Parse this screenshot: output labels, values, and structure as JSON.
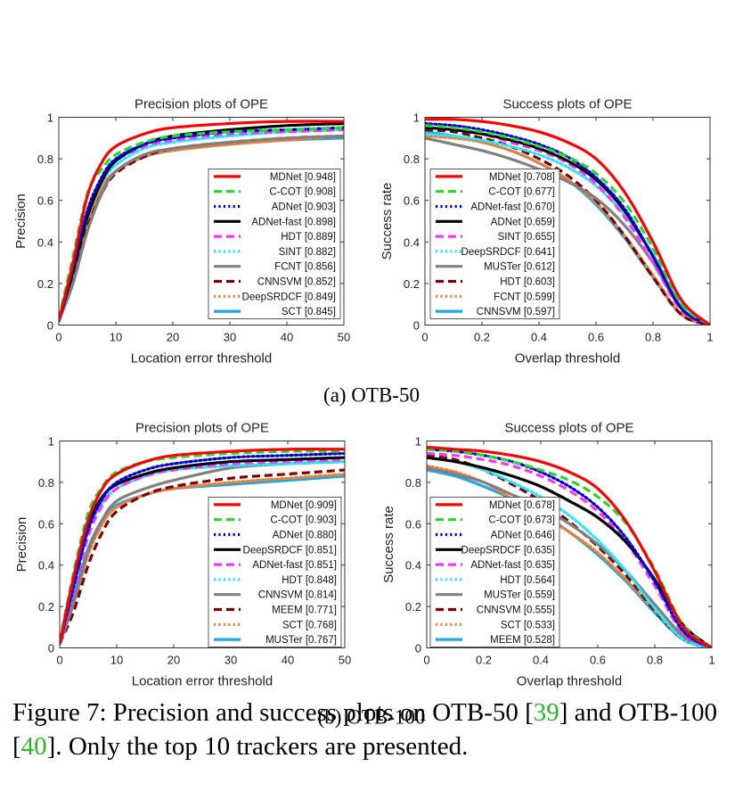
{
  "caption": {
    "lead": "Figure 7: Precision and success plots on OTB-50 [",
    "ref1": "39",
    "mid": "] and OTB-100 [",
    "ref2": "40",
    "tail": "]. Only the top 10 trackers are presented.",
    "ref_color": "#22bb22"
  },
  "subcaptions": [
    "(a) OTB-50",
    "(b) OTB-100"
  ],
  "tracker_styles": {
    "MDNet": {
      "color": "#ff0000",
      "dash": "solid"
    },
    "C-COT": {
      "color": "#22dd22",
      "dash": "dash"
    },
    "ADNet": {
      "color": "#0000dd",
      "dash": "dot"
    },
    "ADNet-fast": {
      "color": "#000000",
      "dash": "solid"
    },
    "DeepSRDCF": {
      "color": "#000000",
      "dash": "solid"
    },
    "HDT": {
      "color": "#ff33ff",
      "dash": "dash"
    },
    "SINT": {
      "color": "#22e8ff",
      "dash": "dot"
    },
    "FCNT": {
      "color": "#808080",
      "dash": "solid"
    },
    "CNNSVM": {
      "color": "#800000",
      "dash": "dash"
    },
    "DeepSRDCF_b": {
      "color": "#f08030",
      "dash": "dot"
    },
    "SCT": {
      "color": "#1fa8e8",
      "dash": "solid"
    },
    "MUSTer": {
      "color": "#808080",
      "dash": "solid"
    },
    "MEEM": {
      "color": "#800000",
      "dash": "dash"
    }
  },
  "chart_data": [
    {
      "type": "line",
      "title": "Precision plots of OPE",
      "xlabel": "Location error threshold",
      "ylabel": "Precision",
      "xlim": [
        0,
        50
      ],
      "ylim": [
        0,
        1
      ],
      "xticks": [
        "0",
        "10",
        "20",
        "30",
        "40",
        "50"
      ],
      "yticks": [
        "0",
        "0.2",
        "0.4",
        "0.6",
        "0.8",
        "1"
      ],
      "legend_position": "bottom-right",
      "x": [
        0,
        2.5,
        5,
        7.5,
        10,
        15,
        20,
        30,
        40,
        50
      ],
      "series": [
        {
          "name": "MDNet [0.948]",
          "color": "#ff0000",
          "dash": "solid",
          "values": [
            0.02,
            0.3,
            0.62,
            0.78,
            0.86,
            0.92,
            0.95,
            0.97,
            0.98,
            0.98
          ]
        },
        {
          "name": "C-COT [0.908]",
          "color": "#22dd22",
          "dash": "dash",
          "values": [
            0.03,
            0.33,
            0.63,
            0.75,
            0.82,
            0.88,
            0.91,
            0.93,
            0.94,
            0.95
          ]
        },
        {
          "name": "ADNet [0.903]",
          "color": "#0000dd",
          "dash": "dot",
          "values": [
            0.02,
            0.28,
            0.55,
            0.71,
            0.8,
            0.87,
            0.9,
            0.93,
            0.94,
            0.95
          ]
        },
        {
          "name": "ADNet-fast [0.898]",
          "color": "#000000",
          "dash": "solid",
          "values": [
            0.02,
            0.26,
            0.52,
            0.69,
            0.79,
            0.87,
            0.91,
            0.94,
            0.96,
            0.97
          ]
        },
        {
          "name": "HDT [0.889]",
          "color": "#ff33ff",
          "dash": "dash",
          "values": [
            0.02,
            0.27,
            0.54,
            0.7,
            0.79,
            0.86,
            0.89,
            0.92,
            0.93,
            0.94
          ]
        },
        {
          "name": "SINT [0.882]",
          "color": "#22e8ff",
          "dash": "dot",
          "values": [
            0.02,
            0.26,
            0.52,
            0.68,
            0.77,
            0.85,
            0.88,
            0.91,
            0.93,
            0.94
          ]
        },
        {
          "name": "FCNT [0.856]",
          "color": "#808080",
          "dash": "solid",
          "values": [
            0.02,
            0.2,
            0.45,
            0.63,
            0.74,
            0.82,
            0.85,
            0.88,
            0.9,
            0.91
          ]
        },
        {
          "name": "CNNSVM [0.852]",
          "color": "#800000",
          "dash": "dash",
          "values": [
            0.02,
            0.22,
            0.47,
            0.63,
            0.73,
            0.81,
            0.85,
            0.88,
            0.9,
            0.91
          ]
        },
        {
          "name": "DeepSRDCF [0.849]",
          "color": "#f08030",
          "dash": "dot",
          "values": [
            0.02,
            0.25,
            0.5,
            0.66,
            0.74,
            0.81,
            0.84,
            0.87,
            0.89,
            0.91
          ]
        },
        {
          "name": "SCT [0.845]",
          "color": "#1fa8e8",
          "dash": "solid",
          "values": [
            0.02,
            0.21,
            0.46,
            0.64,
            0.74,
            0.81,
            0.84,
            0.87,
            0.89,
            0.9
          ]
        }
      ]
    },
    {
      "type": "line",
      "title": "Success plots of OPE",
      "xlabel": "Overlap threshold",
      "ylabel": "Success rate",
      "xlim": [
        0,
        1
      ],
      "ylim": [
        0,
        1
      ],
      "xticks": [
        "0",
        "0.2",
        "0.4",
        "0.6",
        "0.8",
        "1"
      ],
      "yticks": [
        "0",
        "0.2",
        "0.4",
        "0.6",
        "0.8",
        "1"
      ],
      "legend_position": "bottom-left",
      "x": [
        0,
        0.1,
        0.2,
        0.3,
        0.4,
        0.5,
        0.6,
        0.7,
        0.8,
        0.9,
        1
      ],
      "series": [
        {
          "name": "MDNet [0.708]",
          "color": "#ff0000",
          "dash": "solid",
          "values": [
            0.99,
            0.99,
            0.98,
            0.96,
            0.93,
            0.88,
            0.8,
            0.64,
            0.4,
            0.12,
            0.0
          ]
        },
        {
          "name": "C-COT [0.677]",
          "color": "#22dd22",
          "dash": "dash",
          "values": [
            0.96,
            0.95,
            0.93,
            0.9,
            0.86,
            0.81,
            0.73,
            0.59,
            0.37,
            0.1,
            0.0
          ]
        },
        {
          "name": "ADNet-fast [0.670]",
          "color": "#0000dd",
          "dash": "dot",
          "values": [
            0.97,
            0.96,
            0.94,
            0.91,
            0.87,
            0.81,
            0.71,
            0.56,
            0.33,
            0.08,
            0.0
          ]
        },
        {
          "name": "ADNet [0.659]",
          "color": "#000000",
          "dash": "solid",
          "values": [
            0.95,
            0.94,
            0.92,
            0.89,
            0.85,
            0.79,
            0.7,
            0.55,
            0.33,
            0.08,
            0.0
          ]
        },
        {
          "name": "SINT [0.655]",
          "color": "#ff33ff",
          "dash": "dash",
          "values": [
            0.95,
            0.94,
            0.92,
            0.88,
            0.84,
            0.78,
            0.68,
            0.52,
            0.3,
            0.07,
            0.0
          ]
        },
        {
          "name": "DeepSRDCF [0.641]",
          "color": "#22e8ff",
          "dash": "dot",
          "values": [
            0.92,
            0.91,
            0.89,
            0.86,
            0.82,
            0.76,
            0.67,
            0.53,
            0.34,
            0.1,
            0.0
          ]
        },
        {
          "name": "MUSTer [0.612]",
          "color": "#808080",
          "dash": "solid",
          "values": [
            0.9,
            0.87,
            0.84,
            0.8,
            0.75,
            0.69,
            0.61,
            0.48,
            0.3,
            0.08,
            0.0
          ]
        },
        {
          "name": "HDT [0.603]",
          "color": "#800000",
          "dash": "dash",
          "values": [
            0.94,
            0.93,
            0.9,
            0.86,
            0.8,
            0.72,
            0.6,
            0.43,
            0.23,
            0.05,
            0.0
          ]
        },
        {
          "name": "FCNT [0.599]",
          "color": "#f08030",
          "dash": "dot",
          "values": [
            0.91,
            0.9,
            0.88,
            0.84,
            0.78,
            0.7,
            0.59,
            0.43,
            0.24,
            0.05,
            0.0
          ]
        },
        {
          "name": "CNNSVM [0.597]",
          "color": "#1fa8e8",
          "dash": "solid",
          "values": [
            0.93,
            0.91,
            0.88,
            0.84,
            0.78,
            0.7,
            0.58,
            0.42,
            0.23,
            0.05,
            0.0
          ]
        }
      ]
    },
    {
      "type": "line",
      "title": "Precision plots of OPE",
      "xlabel": "Location error threshold",
      "ylabel": "Precision",
      "xlim": [
        0,
        50
      ],
      "ylim": [
        0,
        1
      ],
      "xticks": [
        "0",
        "10",
        "20",
        "30",
        "40",
        "50"
      ],
      "yticks": [
        "0",
        "0.2",
        "0.4",
        "0.6",
        "0.8",
        "1"
      ],
      "legend_position": "bottom-right",
      "x": [
        0,
        2.5,
        5,
        7.5,
        10,
        15,
        20,
        30,
        40,
        50
      ],
      "series": [
        {
          "name": "MDNet [0.909]",
          "color": "#ff0000",
          "dash": "solid",
          "values": [
            0.02,
            0.35,
            0.62,
            0.77,
            0.84,
            0.9,
            0.93,
            0.95,
            0.96,
            0.96
          ]
        },
        {
          "name": "C-COT [0.903]",
          "color": "#22dd22",
          "dash": "dash",
          "values": [
            0.03,
            0.37,
            0.65,
            0.78,
            0.85,
            0.9,
            0.92,
            0.94,
            0.95,
            0.95
          ]
        },
        {
          "name": "ADNet [0.880]",
          "color": "#0000dd",
          "dash": "dot",
          "values": [
            0.02,
            0.3,
            0.57,
            0.72,
            0.8,
            0.86,
            0.89,
            0.92,
            0.93,
            0.94
          ]
        },
        {
          "name": "DeepSRDCF [0.851]",
          "color": "#000000",
          "dash": "solid",
          "values": [
            0.02,
            0.33,
            0.6,
            0.73,
            0.79,
            0.84,
            0.87,
            0.9,
            0.91,
            0.92
          ]
        },
        {
          "name": "ADNet-fast [0.851]",
          "color": "#ff33ff",
          "dash": "dash",
          "values": [
            0.02,
            0.28,
            0.54,
            0.69,
            0.77,
            0.83,
            0.86,
            0.89,
            0.9,
            0.91
          ]
        },
        {
          "name": "HDT [0.848]",
          "color": "#22e8ff",
          "dash": "dot",
          "values": [
            0.02,
            0.3,
            0.57,
            0.7,
            0.77,
            0.83,
            0.86,
            0.88,
            0.89,
            0.9
          ]
        },
        {
          "name": "CNNSVM [0.814]",
          "color": "#808080",
          "dash": "solid",
          "values": [
            0.02,
            0.22,
            0.47,
            0.62,
            0.71,
            0.77,
            0.81,
            0.87,
            0.89,
            0.9
          ]
        },
        {
          "name": "MEEM [0.771]",
          "color": "#800000",
          "dash": "dash",
          "values": [
            0.02,
            0.18,
            0.4,
            0.56,
            0.66,
            0.74,
            0.78,
            0.82,
            0.84,
            0.86
          ]
        },
        {
          "name": "SCT [0.768]",
          "color": "#f08030",
          "dash": "dot",
          "values": [
            0.02,
            0.22,
            0.45,
            0.6,
            0.68,
            0.74,
            0.77,
            0.8,
            0.82,
            0.84
          ]
        },
        {
          "name": "MUSTer [0.767]",
          "color": "#1fa8e8",
          "dash": "solid",
          "values": [
            0.02,
            0.25,
            0.48,
            0.62,
            0.69,
            0.74,
            0.77,
            0.79,
            0.81,
            0.83
          ]
        }
      ]
    },
    {
      "type": "line",
      "title": "Success plots of OPE",
      "xlabel": "Overlap threshold",
      "ylabel": "Success rate",
      "xlim": [
        0,
        1
      ],
      "ylim": [
        0,
        1
      ],
      "xticks": [
        "0",
        "0.2",
        "0.4",
        "0.6",
        "0.8",
        "1"
      ],
      "yticks": [
        "0",
        "0.2",
        "0.4",
        "0.6",
        "0.8",
        "1"
      ],
      "legend_position": "bottom-left",
      "x": [
        0,
        0.1,
        0.2,
        0.3,
        0.4,
        0.5,
        0.6,
        0.7,
        0.8,
        0.9,
        1
      ],
      "series": [
        {
          "name": "MDNet [0.678]",
          "color": "#ff0000",
          "dash": "solid",
          "values": [
            0.97,
            0.96,
            0.95,
            0.93,
            0.9,
            0.85,
            0.77,
            0.61,
            0.37,
            0.1,
            0.0
          ]
        },
        {
          "name": "C-COT [0.673]",
          "color": "#22dd22",
          "dash": "dash",
          "values": [
            0.96,
            0.95,
            0.93,
            0.9,
            0.86,
            0.81,
            0.73,
            0.6,
            0.38,
            0.11,
            0.0
          ]
        },
        {
          "name": "ADNet [0.646]",
          "color": "#0000dd",
          "dash": "dot",
          "values": [
            0.96,
            0.95,
            0.93,
            0.9,
            0.85,
            0.78,
            0.68,
            0.53,
            0.32,
            0.08,
            0.0
          ]
        },
        {
          "name": "DeepSRDCF [0.635]",
          "color": "#000000",
          "dash": "solid",
          "values": [
            0.92,
            0.9,
            0.87,
            0.83,
            0.78,
            0.71,
            0.63,
            0.51,
            0.33,
            0.11,
            0.0
          ]
        },
        {
          "name": "ADNet-fast [0.635]",
          "color": "#ff33ff",
          "dash": "dash",
          "values": [
            0.94,
            0.93,
            0.91,
            0.88,
            0.83,
            0.76,
            0.66,
            0.51,
            0.3,
            0.07,
            0.0
          ]
        },
        {
          "name": "HDT [0.564]",
          "color": "#22e8ff",
          "dash": "dot",
          "values": [
            0.92,
            0.9,
            0.86,
            0.8,
            0.73,
            0.64,
            0.52,
            0.37,
            0.19,
            0.04,
            0.0
          ]
        },
        {
          "name": "MUSTer [0.559]",
          "color": "#808080",
          "dash": "solid",
          "values": [
            0.87,
            0.84,
            0.8,
            0.74,
            0.68,
            0.6,
            0.5,
            0.37,
            0.21,
            0.06,
            0.0
          ]
        },
        {
          "name": "CNNSVM [0.555]",
          "color": "#800000",
          "dash": "dash",
          "values": [
            0.93,
            0.91,
            0.86,
            0.79,
            0.71,
            0.61,
            0.49,
            0.35,
            0.18,
            0.04,
            0.0
          ]
        },
        {
          "name": "SCT [0.533]",
          "color": "#f08030",
          "dash": "dot",
          "values": [
            0.88,
            0.85,
            0.8,
            0.72,
            0.64,
            0.56,
            0.46,
            0.33,
            0.18,
            0.05,
            0.0
          ]
        },
        {
          "name": "MEEM [0.528]",
          "color": "#1fa8e8",
          "dash": "solid",
          "values": [
            0.86,
            0.83,
            0.78,
            0.72,
            0.65,
            0.56,
            0.45,
            0.32,
            0.17,
            0.04,
            0.0
          ]
        }
      ]
    }
  ]
}
